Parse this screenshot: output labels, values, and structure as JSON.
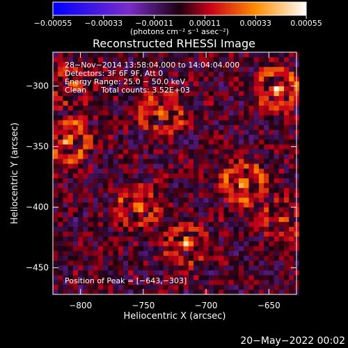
{
  "chart_data": {
    "type": "heatmap",
    "title": "Reconstructed RHESSI Image",
    "xlabel": "Heliocentric X (arcsec)",
    "ylabel": "Heliocentric Y (arcsec)",
    "xlim": [
      -822,
      -628
    ],
    "ylim": [
      -472,
      -272
    ],
    "x_ticks": [
      -800,
      -750,
      -700,
      -650
    ],
    "y_ticks": [
      -450,
      -400,
      -350,
      -300
    ],
    "x_tick_labels": [
      "−800",
      "−750",
      "−700",
      "−650"
    ],
    "y_tick_labels": [
      "−450",
      "−400",
      "−350",
      "−300"
    ],
    "colorbar": {
      "range": [
        -0.00055,
        0.00055
      ],
      "ticks": [
        -0.00055,
        -0.00033,
        -0.00011,
        0.00011,
        0.00033,
        0.00055
      ],
      "tick_labels": [
        "−0.00055",
        "−0.00033",
        "−0.00011",
        "0.00011",
        "0.00033",
        "0.00055"
      ],
      "unit_label": "(photons cm⁻² s⁻¹ asec⁻²)"
    },
    "annotations": [
      "28−Nov−2014 13:58:04.000 to 14:04:04.000",
      "Detectors: 3F 6F 9F, Att 0",
      "Energy Range: 25.0 − 50.0 keV",
      "Clean      Total counts: 3.52E+03"
    ],
    "peak_label": "Position of Peak = [−643,−303]",
    "peak": {
      "x": -643,
      "y": -303
    },
    "sources": [
      {
        "x": -643,
        "y": -303,
        "amplitude": 0.00055
      },
      {
        "x": -810,
        "y": -345,
        "amplitude": 0.00052
      },
      {
        "x": -735,
        "y": -322,
        "amplitude": 0.00045
      },
      {
        "x": -670,
        "y": -380,
        "amplitude": 0.0005
      },
      {
        "x": -755,
        "y": -400,
        "amplitude": 0.00045
      },
      {
        "x": -715,
        "y": -430,
        "amplitude": 0.00038
      },
      {
        "x": -640,
        "y": -410,
        "amplitude": 0.00028
      },
      {
        "x": -805,
        "y": -300,
        "amplitude": 0.0003
      }
    ]
  },
  "footer_date": "20−May−2022 00:02"
}
